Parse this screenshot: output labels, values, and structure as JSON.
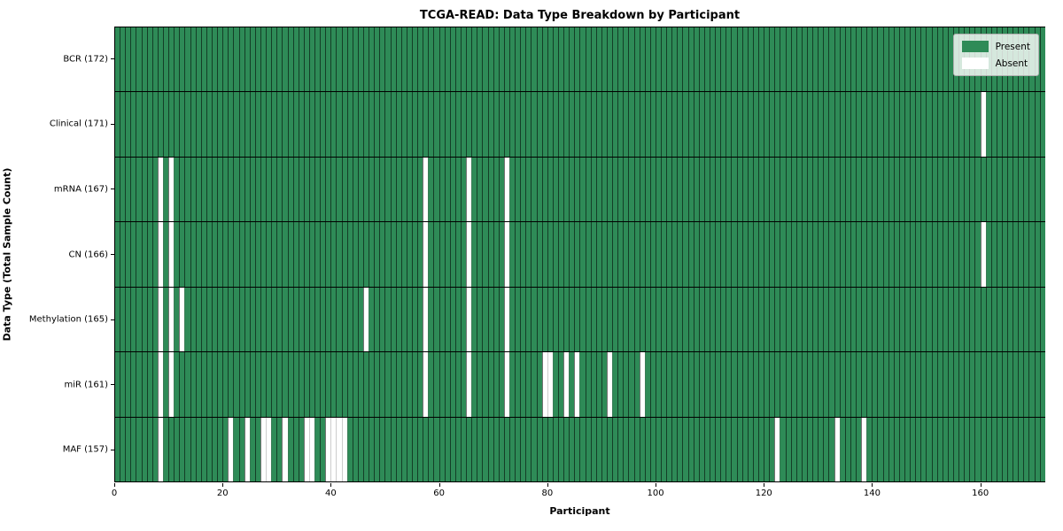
{
  "title": "TCGA-READ: Data Type Breakdown by Participant",
  "xlabel": "Participant",
  "ylabel": "Data Type (Total Sample Count)",
  "legend": {
    "present_label": "Present",
    "absent_label": "Absent"
  },
  "colors": {
    "present": "#2e8b57",
    "absent": "#ffffff",
    "grid": "#000000"
  },
  "chart_data": {
    "type": "heatmap",
    "x_axis": {
      "label": "Participant",
      "ticks": [
        0,
        20,
        40,
        60,
        80,
        100,
        120,
        140,
        160
      ],
      "range": [
        0,
        172
      ]
    },
    "n_participants": 172,
    "legend_position": "upper right",
    "rows": [
      {
        "label": "BCR (172)",
        "name": "BCR",
        "total": 172,
        "absent_participants": []
      },
      {
        "label": "Clinical (171)",
        "name": "Clinical",
        "total": 171,
        "absent_participants": [
          160
        ]
      },
      {
        "label": "mRNA (167)",
        "name": "mRNA",
        "total": 167,
        "absent_participants": [
          8,
          10,
          57,
          65,
          72
        ]
      },
      {
        "label": "CN (166)",
        "name": "CN",
        "total": 166,
        "absent_participants": [
          8,
          10,
          57,
          65,
          72,
          160
        ]
      },
      {
        "label": "Methylation (165)",
        "name": "Methylation",
        "total": 165,
        "absent_participants": [
          8,
          10,
          12,
          46,
          57,
          65,
          72
        ]
      },
      {
        "label": "miR (161)",
        "name": "miR",
        "total": 161,
        "absent_participants": [
          8,
          10,
          57,
          65,
          72,
          79,
          80,
          83,
          85,
          91,
          97
        ]
      },
      {
        "label": "MAF (157)",
        "name": "MAF",
        "total": 157,
        "absent_participants": [
          8,
          21,
          24,
          27,
          28,
          31,
          35,
          36,
          39,
          40,
          41,
          42,
          122,
          133,
          138
        ]
      }
    ]
  }
}
